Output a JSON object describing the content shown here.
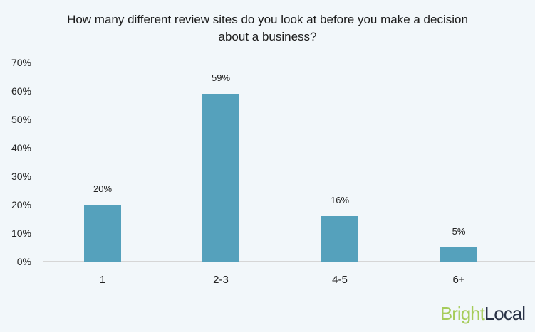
{
  "chart_data": {
    "type": "bar",
    "title": "How many different review sites do you look at before you make a decision about a business?",
    "title_lines": [
      "How many different review sites do you look at before you make a decision",
      "about a business?"
    ],
    "categories": [
      "1",
      "2-3",
      "4-5",
      "6+"
    ],
    "values": [
      20,
      59,
      16,
      5
    ],
    "data_labels": [
      "20%",
      "59%",
      "16%",
      "5%"
    ],
    "xlabel": "",
    "ylabel": "",
    "ylim": [
      0,
      70
    ],
    "yticks": [
      "0%",
      "10%",
      "20%",
      "30%",
      "40%",
      "50%",
      "60%",
      "70%"
    ],
    "grid": false,
    "legend": null,
    "bar_color": "#55a1bc"
  },
  "branding": {
    "logo_part1": "Bright",
    "logo_part2": "Local",
    "color1": "#a6cc5a",
    "color2": "#2a3347"
  }
}
